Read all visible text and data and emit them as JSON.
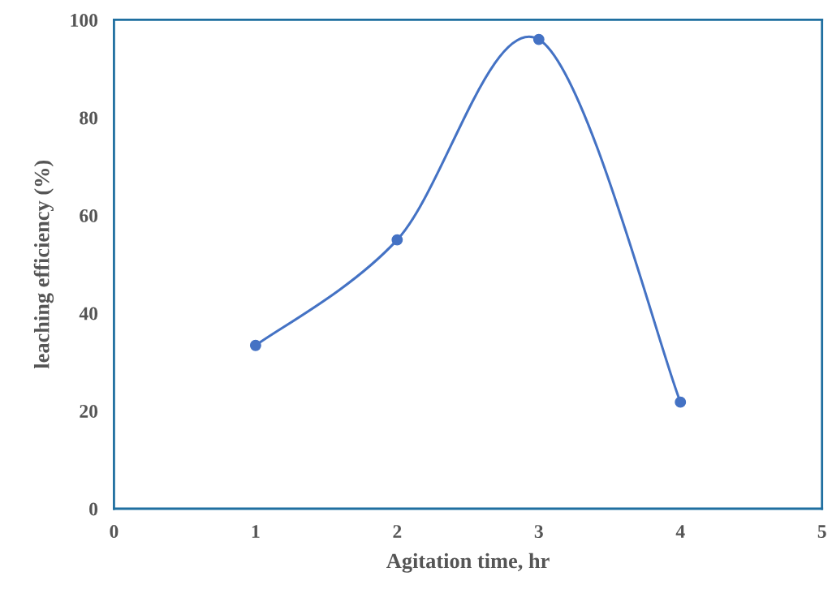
{
  "chart_data": {
    "type": "line",
    "xlabel": "Agitation time, hr",
    "ylabel": "leaching efficiency (%)",
    "x": [
      1,
      2,
      3,
      4
    ],
    "series": [
      {
        "color": "#4472c4",
        "values": [
          33.4,
          55.0,
          96.0,
          21.8
        ]
      }
    ],
    "xlim": [
      0,
      5
    ],
    "xticks": [
      0,
      1,
      2,
      3,
      4,
      5
    ],
    "ylim": [
      0,
      100
    ],
    "yticks": [
      0,
      20,
      40,
      60,
      80,
      100
    ],
    "marker": "circle",
    "line_style": "solid",
    "grid": false
  }
}
